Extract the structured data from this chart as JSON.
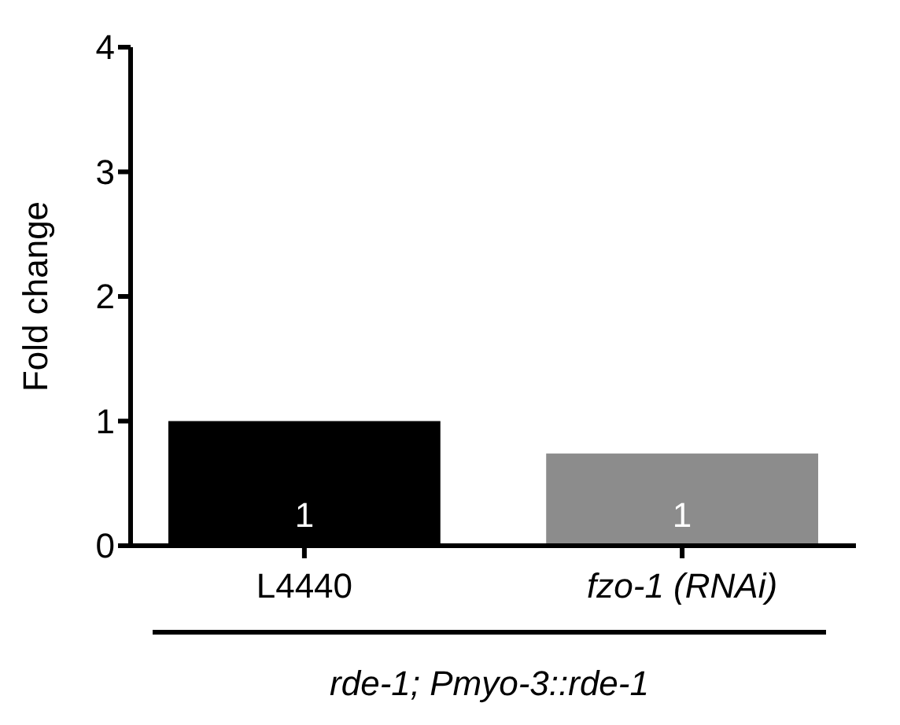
{
  "chart_data": {
    "type": "bar",
    "ylabel": "Fold change",
    "xlabel": "rde-1; Pmyo-3::rde-1",
    "categories": [
      "L4440",
      "fzo-1 (RNAi)"
    ],
    "values": [
      1,
      0.74
    ],
    "colors": [
      "#000000",
      "#8c8c8c"
    ],
    "value_labels": [
      "1",
      "1"
    ],
    "ylim": [
      0,
      4
    ],
    "yticks": [
      0,
      1,
      2,
      3,
      4
    ]
  }
}
